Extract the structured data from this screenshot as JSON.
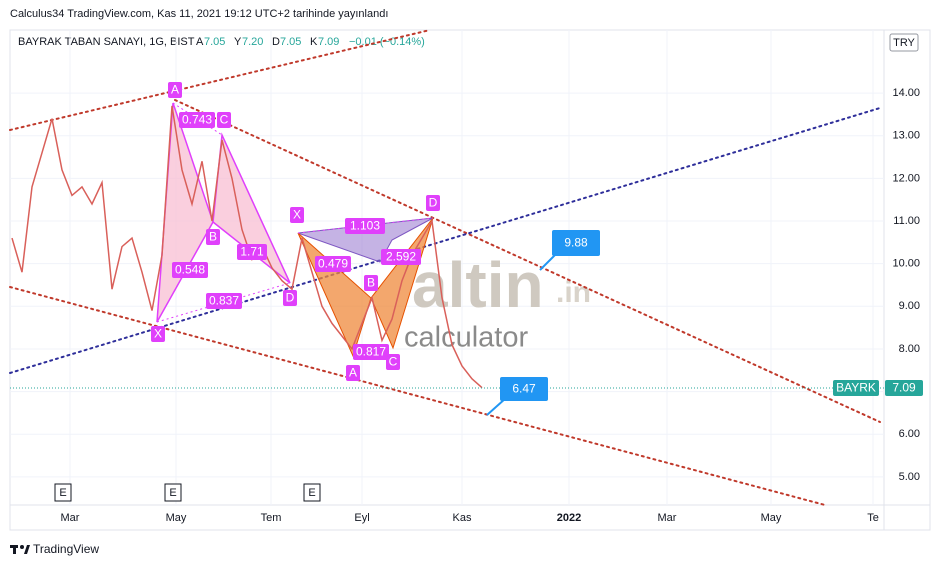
{
  "header": {
    "publisher": "Calculus34 TradingView.com, Kas 11, 2021 19:12 UTC+2 tarihinde yayınlandı"
  },
  "legend": {
    "symbol": "BAYRAK TABAN SANAYI, 1G, BIST",
    "open_label": "A",
    "open": "7.05",
    "high_label": "Y",
    "high": "7.20",
    "low_label": "D",
    "low": "7.05",
    "close_label": "K",
    "close": "7.09",
    "change": "−0.01 (−0.14%)"
  },
  "currency": "TRY",
  "price_axis": {
    "ylim": [
      4.34,
      15.48
    ],
    "ticks": [
      {
        "value": 14,
        "label": "14.00"
      },
      {
        "value": 13,
        "label": "13.00"
      },
      {
        "value": 12,
        "label": "12.00"
      },
      {
        "value": 11,
        "label": "11.00"
      },
      {
        "value": 10,
        "label": "10.00"
      },
      {
        "value": 9,
        "label": "9.00"
      },
      {
        "value": 8,
        "label": "8.00"
      },
      {
        "value": 7,
        "label": "7.00"
      },
      {
        "value": 6,
        "label": "6.00"
      },
      {
        "value": 5,
        "label": "5.00"
      }
    ]
  },
  "time_axis": {
    "labels": [
      "Mar",
      "May",
      "Tem",
      "Eyl",
      "Kas",
      "2022",
      "Mar",
      "May",
      "Te"
    ]
  },
  "price_series": {
    "color": "#d9605a",
    "values": [
      10.6,
      9.8,
      11.8,
      12.6,
      13.4,
      12.2,
      11.6,
      11.8,
      11.4,
      11.9,
      9.4,
      10.4,
      10.6,
      9.8,
      8.9,
      10.2,
      13.7,
      12.2,
      11.4,
      12.4,
      11.0,
      12.9,
      12.0,
      10.8,
      10.1,
      10.4,
      9.9,
      9.6,
      9.4,
      10.6,
      9.8,
      9.0,
      8.6,
      8.3,
      8.0,
      8.6,
      9.2,
      8.2,
      8.7,
      9.6,
      10.2,
      10.6,
      11.0,
      9.2,
      8.1,
      7.6,
      7.3,
      7.09
    ]
  },
  "last_price": {
    "symbol": "BAYRK",
    "value": "7.09"
  },
  "pattern_1": {
    "points": [
      "X",
      "A",
      "B",
      "C",
      "D"
    ],
    "ratios": [
      "0.743",
      "0.548",
      "1.71",
      "0.837"
    ]
  },
  "pattern_2": {
    "points": [
      "X",
      "A",
      "B",
      "C",
      "D"
    ],
    "ratios": [
      "1.103",
      "0.479",
      "2.592",
      "0.817"
    ]
  },
  "callouts": [
    "9.88",
    "6.47"
  ],
  "events": [
    "E",
    "E",
    "E"
  ],
  "watermark": {
    "brand": "altin",
    "tld": ".in",
    "product": "calculator"
  },
  "footer": {
    "logo": "TradingView"
  }
}
